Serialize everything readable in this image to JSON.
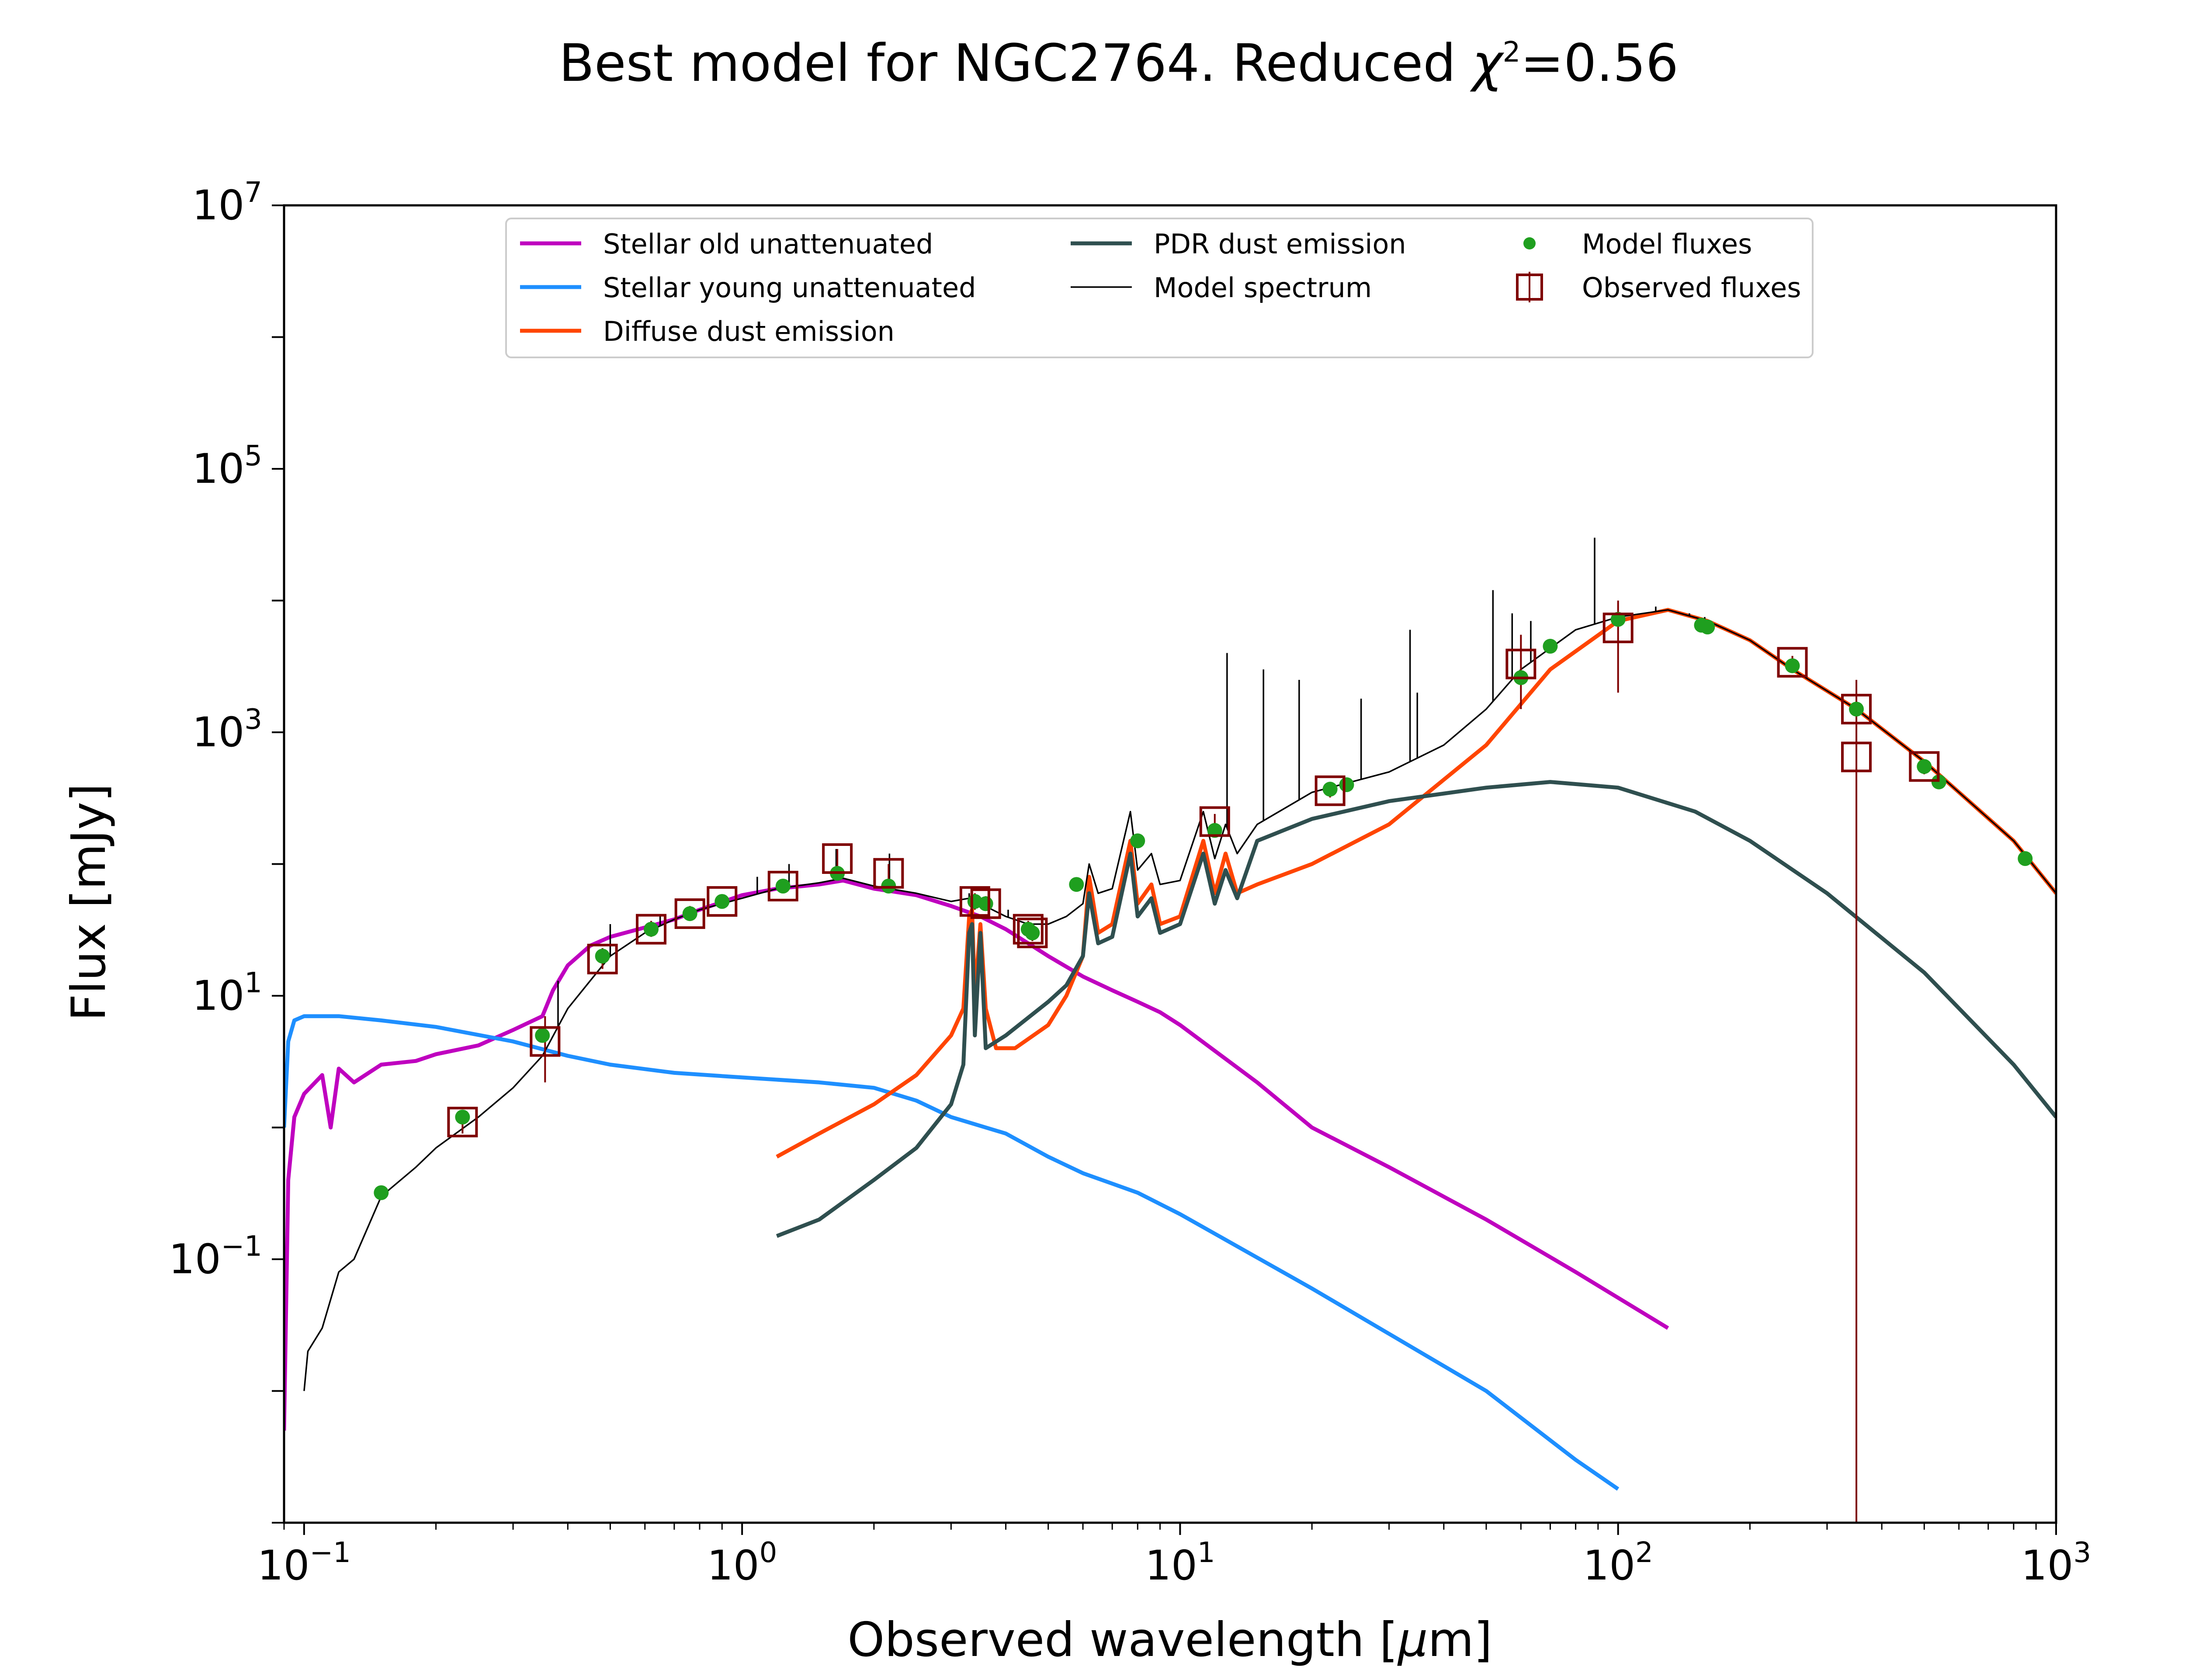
{
  "chart_data": {
    "type": "line",
    "title": "Best model for NGC2764. Reduced χ²=0.56",
    "title_parts": {
      "main": "Best model for NGC2764. Reduced ",
      "chi": "χ",
      "sup": "2",
      "tail": "=0.56"
    },
    "xlabel": "Observed wavelength [μm]",
    "xlabel_parts": {
      "pre": "Observed wavelength [",
      "mu": "μ",
      "post": "m]"
    },
    "ylabel": "Flux [mJy]",
    "x_scale": "log",
    "y_scale": "log",
    "xlim": [
      0.09,
      1000
    ],
    "ylim": [
      0.001,
      10000000
    ],
    "x_ticks": [
      {
        "value": 0.1,
        "base": "10",
        "exp": "−1"
      },
      {
        "value": 1,
        "base": "10",
        "exp": "0"
      },
      {
        "value": 10,
        "base": "10",
        "exp": "1"
      },
      {
        "value": 100,
        "base": "10",
        "exp": "2"
      },
      {
        "value": 1000,
        "base": "10",
        "exp": "3"
      }
    ],
    "y_ticks": [
      {
        "value": 0.1,
        "base": "10",
        "exp": "−1"
      },
      {
        "value": 10,
        "base": "10",
        "exp": "1"
      },
      {
        "value": 1000,
        "base": "10",
        "exp": "3"
      },
      {
        "value": 100000,
        "base": "10",
        "exp": "5"
      },
      {
        "value": 10000000,
        "base": "10",
        "exp": "7"
      }
    ],
    "grid": false,
    "legend_position": "top-center",
    "series": [
      {
        "name": "Stellar old unattenuated",
        "color": "#bf00bf",
        "points": [
          [
            0.09,
            0.005
          ],
          [
            0.092,
            0.4
          ],
          [
            0.095,
            1.2
          ],
          [
            0.1,
            1.8
          ],
          [
            0.11,
            2.5
          ],
          [
            0.115,
            1.0
          ],
          [
            0.12,
            2.8
          ],
          [
            0.13,
            2.2
          ],
          [
            0.15,
            3.0
          ],
          [
            0.18,
            3.2
          ],
          [
            0.2,
            3.6
          ],
          [
            0.25,
            4.2
          ],
          [
            0.3,
            5.5
          ],
          [
            0.35,
            7.0
          ],
          [
            0.37,
            11
          ],
          [
            0.4,
            17
          ],
          [
            0.45,
            24
          ],
          [
            0.5,
            28
          ],
          [
            0.6,
            33
          ],
          [
            0.7,
            38
          ],
          [
            0.8,
            45
          ],
          [
            1.0,
            58
          ],
          [
            1.2,
            65
          ],
          [
            1.5,
            70
          ],
          [
            1.7,
            75
          ],
          [
            2.0,
            65
          ],
          [
            2.2,
            62
          ],
          [
            2.5,
            58
          ],
          [
            3.0,
            48
          ],
          [
            3.5,
            40
          ],
          [
            4.0,
            32
          ],
          [
            4.5,
            25
          ],
          [
            5.0,
            20
          ],
          [
            6.0,
            14
          ],
          [
            7.0,
            11
          ],
          [
            8.0,
            9
          ],
          [
            9.0,
            7.5
          ],
          [
            10,
            6.0
          ],
          [
            15,
            2.2
          ],
          [
            20,
            1.0
          ],
          [
            30,
            0.5
          ],
          [
            50,
            0.2
          ],
          [
            80,
            0.08
          ],
          [
            130,
            0.03
          ]
        ]
      },
      {
        "name": "Stellar young unattenuated",
        "color": "#1e8fff",
        "points": [
          [
            0.09,
            1.0
          ],
          [
            0.092,
            4.5
          ],
          [
            0.095,
            6.5
          ],
          [
            0.1,
            7.0
          ],
          [
            0.12,
            7.0
          ],
          [
            0.15,
            6.5
          ],
          [
            0.2,
            5.8
          ],
          [
            0.3,
            4.5
          ],
          [
            0.4,
            3.5
          ],
          [
            0.5,
            3.0
          ],
          [
            0.7,
            2.6
          ],
          [
            1.0,
            2.4
          ],
          [
            1.5,
            2.2
          ],
          [
            2.0,
            2.0
          ],
          [
            2.5,
            1.6
          ],
          [
            3.0,
            1.2
          ],
          [
            4.0,
            0.9
          ],
          [
            5.0,
            0.6
          ],
          [
            6.0,
            0.45
          ],
          [
            8.0,
            0.32
          ],
          [
            10,
            0.22
          ],
          [
            20,
            0.06
          ],
          [
            50,
            0.01
          ],
          [
            80,
            0.003
          ],
          [
            100,
            0.0018
          ]
        ]
      },
      {
        "name": "Diffuse dust emission",
        "color": "#ff4500",
        "points": [
          [
            1.2,
            0.6
          ],
          [
            1.5,
            0.9
          ],
          [
            2.0,
            1.5
          ],
          [
            2.5,
            2.5
          ],
          [
            3.0,
            5
          ],
          [
            3.2,
            8
          ],
          [
            3.3,
            40
          ],
          [
            3.35,
            45
          ],
          [
            3.4,
            10
          ],
          [
            3.5,
            35
          ],
          [
            3.6,
            8
          ],
          [
            3.8,
            4
          ],
          [
            4.2,
            4
          ],
          [
            5.0,
            6
          ],
          [
            5.5,
            10
          ],
          [
            6.0,
            20
          ],
          [
            6.2,
            80
          ],
          [
            6.5,
            30
          ],
          [
            7.0,
            35
          ],
          [
            7.7,
            150
          ],
          [
            8.0,
            50
          ],
          [
            8.6,
            70
          ],
          [
            9.0,
            35
          ],
          [
            10,
            40
          ],
          [
            11.3,
            150
          ],
          [
            12,
            60
          ],
          [
            12.7,
            120
          ],
          [
            13.5,
            60
          ],
          [
            15,
            70
          ],
          [
            20,
            100
          ],
          [
            30,
            200
          ],
          [
            50,
            800
          ],
          [
            70,
            3000
          ],
          [
            100,
            7000
          ],
          [
            130,
            8500
          ],
          [
            160,
            7000
          ],
          [
            200,
            5000
          ],
          [
            250,
            3000
          ],
          [
            350,
            1500
          ],
          [
            500,
            600
          ],
          [
            800,
            150
          ],
          [
            1000,
            60
          ]
        ]
      },
      {
        "name": "PDR dust emission",
        "color": "#2f4f4f",
        "points": [
          [
            1.2,
            0.15
          ],
          [
            1.5,
            0.2
          ],
          [
            2.0,
            0.4
          ],
          [
            2.5,
            0.7
          ],
          [
            3.0,
            1.5
          ],
          [
            3.2,
            3
          ],
          [
            3.3,
            30
          ],
          [
            3.35,
            35
          ],
          [
            3.4,
            5
          ],
          [
            3.5,
            30
          ],
          [
            3.6,
            4
          ],
          [
            4.0,
            5
          ],
          [
            5.0,
            9
          ],
          [
            5.5,
            12
          ],
          [
            6.0,
            20
          ],
          [
            6.2,
            60
          ],
          [
            6.5,
            25
          ],
          [
            7.0,
            28
          ],
          [
            7.7,
            120
          ],
          [
            8.0,
            40
          ],
          [
            8.6,
            55
          ],
          [
            9.0,
            30
          ],
          [
            10,
            35
          ],
          [
            11.3,
            120
          ],
          [
            12,
            50
          ],
          [
            12.7,
            90
          ],
          [
            13.5,
            55
          ],
          [
            15,
            150
          ],
          [
            20,
            220
          ],
          [
            30,
            300
          ],
          [
            50,
            380
          ],
          [
            70,
            420
          ],
          [
            100,
            380
          ],
          [
            150,
            250
          ],
          [
            200,
            150
          ],
          [
            300,
            60
          ],
          [
            500,
            15
          ],
          [
            800,
            3
          ],
          [
            1000,
            1.2
          ]
        ]
      },
      {
        "name": "Model spectrum",
        "color": "#000000",
        "points": [
          [
            0.1,
            0.01
          ],
          [
            0.102,
            0.02
          ],
          [
            0.11,
            0.03
          ],
          [
            0.12,
            0.08
          ],
          [
            0.13,
            0.1
          ],
          [
            0.15,
            0.3
          ],
          [
            0.18,
            0.5
          ],
          [
            0.2,
            0.7
          ],
          [
            0.25,
            1.2
          ],
          [
            0.3,
            2.0
          ],
          [
            0.35,
            3.5
          ],
          [
            0.4,
            8
          ],
          [
            0.45,
            13
          ],
          [
            0.5,
            20
          ],
          [
            0.6,
            30
          ],
          [
            0.7,
            38
          ],
          [
            0.8,
            45
          ],
          [
            1.0,
            55
          ],
          [
            1.2,
            65
          ],
          [
            1.5,
            72
          ],
          [
            1.7,
            78
          ],
          [
            2.0,
            68
          ],
          [
            2.5,
            60
          ],
          [
            3.0,
            52
          ],
          [
            3.3,
            55
          ],
          [
            3.5,
            50
          ],
          [
            4.0,
            40
          ],
          [
            4.5,
            35
          ],
          [
            5.0,
            35
          ],
          [
            5.5,
            40
          ],
          [
            6.0,
            50
          ],
          [
            6.2,
            100
          ],
          [
            6.5,
            60
          ],
          [
            7.0,
            65
          ],
          [
            7.7,
            250
          ],
          [
            8.0,
            90
          ],
          [
            8.6,
            120
          ],
          [
            9.0,
            70
          ],
          [
            10,
            75
          ],
          [
            11.3,
            250
          ],
          [
            12,
            110
          ],
          [
            12.7,
            200
          ],
          [
            13.5,
            120
          ],
          [
            15,
            200
          ],
          [
            20,
            350
          ],
          [
            30,
            500
          ],
          [
            40,
            800
          ],
          [
            50,
            1500
          ],
          [
            60,
            3000
          ],
          [
            80,
            6000
          ],
          [
            100,
            7500
          ],
          [
            130,
            8500
          ],
          [
            160,
            7000
          ],
          [
            200,
            5000
          ],
          [
            250,
            3000
          ],
          [
            350,
            1500
          ],
          [
            500,
            600
          ],
          [
            800,
            150
          ],
          [
            1000,
            60
          ]
        ]
      }
    ],
    "emission_lines": [
      [
        12.8,
        4000
      ],
      [
        15.5,
        3000
      ],
      [
        18.7,
        2500
      ],
      [
        25.9,
        1800
      ],
      [
        33.5,
        6000
      ],
      [
        34.8,
        2000
      ],
      [
        51.8,
        12000
      ],
      [
        57.3,
        8000
      ],
      [
        63.2,
        7000
      ],
      [
        88.4,
        30000
      ],
      [
        121.9,
        9000
      ],
      [
        145.5,
        8000
      ],
      [
        157.7,
        7500
      ],
      [
        1.083,
        80
      ],
      [
        1.28,
        100
      ],
      [
        1.64,
        130
      ],
      [
        2.17,
        120
      ],
      [
        3.3,
        60
      ],
      [
        4.05,
        45
      ],
      [
        0.5,
        35
      ],
      [
        0.65,
        40
      ],
      [
        0.38,
        13
      ]
    ],
    "model_fluxes": {
      "name": "Model fluxes",
      "color": "#1f9f1f",
      "points": [
        [
          0.15,
          0.32
        ],
        [
          0.23,
          1.2
        ],
        [
          0.35,
          5
        ],
        [
          0.48,
          20
        ],
        [
          0.62,
          32
        ],
        [
          0.76,
          42
        ],
        [
          0.9,
          52
        ],
        [
          1.24,
          68
        ],
        [
          1.65,
          85
        ],
        [
          2.16,
          68
        ],
        [
          3.4,
          52
        ],
        [
          3.6,
          50
        ],
        [
          4.5,
          32
        ],
        [
          4.6,
          30
        ],
        [
          5.8,
          70
        ],
        [
          8.0,
          150
        ],
        [
          12,
          180
        ],
        [
          22,
          370
        ],
        [
          24,
          400
        ],
        [
          60,
          2600
        ],
        [
          70,
          4500
        ],
        [
          100,
          7200
        ],
        [
          155,
          6500
        ],
        [
          160,
          6300
        ],
        [
          250,
          3200
        ],
        [
          350,
          1500
        ],
        [
          500,
          550
        ],
        [
          540,
          420
        ],
        [
          850,
          110
        ]
      ]
    },
    "observed_fluxes": {
      "name": "Observed fluxes",
      "color": "#7f0000",
      "points": [
        {
          "x": 0.23,
          "y": 1.1,
          "lo": 0.9,
          "hi": 1.3
        },
        {
          "x": 0.355,
          "y": 4.5,
          "lo": 2.2,
          "hi": 7.0
        },
        {
          "x": 0.48,
          "y": 19,
          "lo": 16,
          "hi": 23
        },
        {
          "x": 0.62,
          "y": 32,
          "lo": 28,
          "hi": 37
        },
        {
          "x": 0.76,
          "y": 42,
          "lo": 37,
          "hi": 48
        },
        {
          "x": 0.9,
          "y": 52,
          "lo": 46,
          "hi": 58
        },
        {
          "x": 1.24,
          "y": 68,
          "lo": 60,
          "hi": 76
        },
        {
          "x": 1.65,
          "y": 110,
          "lo": 90,
          "hi": 130
        },
        {
          "x": 2.16,
          "y": 85,
          "lo": 72,
          "hi": 100
        },
        {
          "x": 3.4,
          "y": 52,
          "lo": 45,
          "hi": 60
        },
        {
          "x": 3.6,
          "y": 50,
          "lo": 44,
          "hi": 57
        },
        {
          "x": 4.5,
          "y": 32,
          "lo": 28,
          "hi": 37
        },
        {
          "x": 4.6,
          "y": 30,
          "lo": 26,
          "hi": 35
        },
        {
          "x": 12,
          "y": 210,
          "lo": 180,
          "hi": 240
        },
        {
          "x": 22,
          "y": 360,
          "lo": 320,
          "hi": 400
        },
        {
          "x": 60,
          "y": 3300,
          "lo": 1500,
          "hi": 5500
        },
        {
          "x": 100,
          "y": 6200,
          "lo": 2000,
          "hi": 10000
        },
        {
          "x": 250,
          "y": 3400,
          "lo": 3000,
          "hi": 3800
        },
        {
          "x": 350,
          "y": 1500,
          "lo": 500,
          "hi": 2500
        },
        {
          "x": 350,
          "y": 650,
          "lo": 0.001,
          "hi": 1200
        },
        {
          "x": 500,
          "y": 550,
          "lo": 480,
          "hi": 620
        }
      ]
    },
    "legend": {
      "items": [
        {
          "label": "Stellar old unattenuated",
          "kind": "line",
          "color": "#bf00bf"
        },
        {
          "label": "Stellar young unattenuated",
          "kind": "line",
          "color": "#1e8fff"
        },
        {
          "label": "Diffuse dust emission",
          "kind": "line",
          "color": "#ff4500"
        },
        {
          "label": "PDR dust emission",
          "kind": "line",
          "color": "#2f4f4f"
        },
        {
          "label": "Model spectrum",
          "kind": "thin-line",
          "color": "#000000"
        },
        {
          "label": "Model fluxes",
          "kind": "dot",
          "color": "#1f9f1f"
        },
        {
          "label": "Observed fluxes",
          "kind": "square",
          "color": "#7f0000"
        }
      ]
    }
  }
}
